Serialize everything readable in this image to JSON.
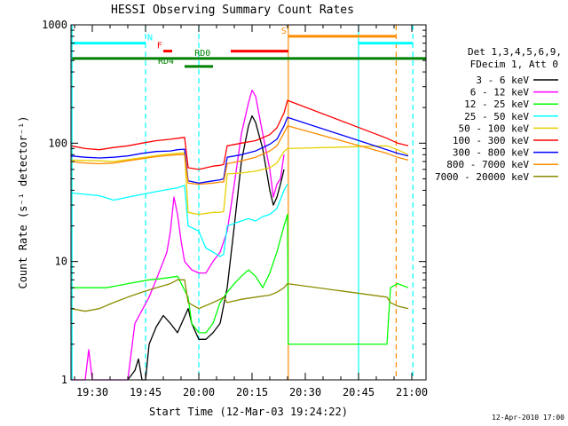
{
  "chart_data": {
    "type": "line",
    "title": "HESSI Observing Summary Count Rates",
    "xlabel": "Start Time (12-Mar-03 19:24:22)",
    "ylabel": "Count Rate (s⁻¹ detector⁻¹)",
    "yscale": "log",
    "ylim": [
      1,
      1000
    ],
    "xlim_min_after_1924": [
      0,
      100
    ],
    "x_ticks": [
      {
        "m": 6,
        "label": "19:30"
      },
      {
        "m": 21,
        "label": "19:45"
      },
      {
        "m": 36,
        "label": "20:00"
      },
      {
        "m": 51,
        "label": "20:15"
      },
      {
        "m": 66,
        "label": "20:30"
      },
      {
        "m": 81,
        "label": "20:45"
      },
      {
        "m": 96,
        "label": "21:00"
      }
    ],
    "y_ticks": [
      {
        "v": 1,
        "label": "1"
      },
      {
        "v": 10,
        "label": "10"
      },
      {
        "v": 100,
        "label": "100"
      },
      {
        "v": 1000,
        "label": "1000"
      }
    ],
    "legend_title": [
      "Det 1,3,4,5,6,9,",
      "FDecim 1, Att 0"
    ],
    "series": [
      {
        "name": "3 - 6 keV",
        "color": "#000000",
        "points": [
          [
            16,
            1
          ],
          [
            18,
            1.2
          ],
          [
            19,
            1.5
          ],
          [
            20,
            1
          ],
          [
            21,
            1
          ],
          [
            22,
            2
          ],
          [
            24,
            2.8
          ],
          [
            26,
            3.5
          ],
          [
            28,
            3
          ],
          [
            30,
            2.5
          ],
          [
            33,
            4
          ],
          [
            34,
            3
          ],
          [
            36,
            2.2
          ],
          [
            38,
            2.2
          ],
          [
            40,
            2.5
          ],
          [
            42,
            3
          ],
          [
            44,
            6
          ],
          [
            46,
            20
          ],
          [
            48,
            70
          ],
          [
            50,
            140
          ],
          [
            51,
            170
          ],
          [
            52,
            150
          ],
          [
            54,
            90
          ],
          [
            56,
            40
          ],
          [
            57,
            30
          ],
          [
            58,
            35
          ],
          [
            59,
            45
          ],
          [
            60,
            60
          ]
        ]
      },
      {
        "name": "6 - 12 keV",
        "color": "#ff00ff",
        "points": [
          [
            0,
            1
          ],
          [
            4,
            1
          ],
          [
            5,
            1.8
          ],
          [
            6,
            1
          ],
          [
            16,
            1
          ],
          [
            18,
            3
          ],
          [
            22,
            5
          ],
          [
            24,
            7
          ],
          [
            26,
            10
          ],
          [
            27,
            12
          ],
          [
            28,
            18
          ],
          [
            29,
            35
          ],
          [
            30,
            25
          ],
          [
            31,
            15
          ],
          [
            32,
            10
          ],
          [
            34,
            8.5
          ],
          [
            36,
            8
          ],
          [
            38,
            8
          ],
          [
            40,
            10
          ],
          [
            42,
            12
          ],
          [
            44,
            18
          ],
          [
            46,
            45
          ],
          [
            48,
            120
          ],
          [
            50,
            220
          ],
          [
            51,
            280
          ],
          [
            52,
            250
          ],
          [
            54,
            120
          ],
          [
            56,
            60
          ],
          [
            57,
            35
          ],
          [
            58,
            45
          ],
          [
            59,
            50
          ],
          [
            60,
            80
          ]
        ]
      },
      {
        "name": "12 - 25 keV",
        "color": "#00ff00",
        "points": [
          [
            0,
            6
          ],
          [
            10,
            6
          ],
          [
            16,
            6.5
          ],
          [
            22,
            7
          ],
          [
            26,
            7.2
          ],
          [
            30,
            7.5
          ],
          [
            33,
            5
          ],
          [
            34,
            3
          ],
          [
            36,
            2.5
          ],
          [
            38,
            2.5
          ],
          [
            40,
            3
          ],
          [
            42,
            4.5
          ],
          [
            44,
            5.5
          ],
          [
            46,
            6.5
          ],
          [
            48,
            7.5
          ],
          [
            50,
            8.5
          ],
          [
            52,
            7.5
          ],
          [
            54,
            6
          ],
          [
            56,
            8
          ],
          [
            58,
            12
          ],
          [
            60,
            20
          ],
          [
            61,
            25
          ],
          [
            61.2,
            2
          ],
          [
            81,
            2
          ],
          [
            89,
            2
          ],
          [
            90,
            6
          ],
          [
            92,
            6.5
          ],
          [
            95,
            6
          ]
        ]
      },
      {
        "name": "25 - 50 keV",
        "color": "#00ffff",
        "points": [
          [
            0,
            38
          ],
          [
            8,
            36
          ],
          [
            12,
            33
          ],
          [
            16,
            35
          ],
          [
            22,
            38
          ],
          [
            26,
            40
          ],
          [
            30,
            42
          ],
          [
            32,
            44
          ],
          [
            33,
            20
          ],
          [
            36,
            18
          ],
          [
            38,
            13
          ],
          [
            40,
            12
          ],
          [
            42,
            11
          ],
          [
            43,
            11.5
          ],
          [
            44,
            20
          ],
          [
            46,
            21
          ],
          [
            48,
            22
          ],
          [
            50,
            23
          ],
          [
            52,
            22
          ],
          [
            54,
            24
          ],
          [
            56,
            25
          ],
          [
            58,
            28
          ],
          [
            60,
            40
          ],
          [
            61,
            45
          ]
        ]
      },
      {
        "name": "50 - 100 keV",
        "color": "#e8d000",
        "points": [
          [
            0,
            72
          ],
          [
            8,
            71
          ],
          [
            12,
            70
          ],
          [
            18,
            74
          ],
          [
            22,
            77
          ],
          [
            26,
            80
          ],
          [
            30,
            82
          ],
          [
            32,
            83
          ],
          [
            33,
            26
          ],
          [
            36,
            25
          ],
          [
            40,
            26
          ],
          [
            42,
            26
          ],
          [
            43,
            26.5
          ],
          [
            44,
            55
          ],
          [
            48,
            56
          ],
          [
            52,
            58
          ],
          [
            56,
            62
          ],
          [
            58,
            68
          ],
          [
            60,
            85
          ],
          [
            61,
            90
          ],
          [
            89,
            95
          ],
          [
            92,
            88
          ],
          [
            95,
            80
          ]
        ]
      },
      {
        "name": "100 - 300 keV",
        "color": "#ff0000",
        "points": [
          [
            0,
            95
          ],
          [
            4,
            90
          ],
          [
            8,
            88
          ],
          [
            12,
            92
          ],
          [
            16,
            95
          ],
          [
            20,
            100
          ],
          [
            24,
            105
          ],
          [
            28,
            108
          ],
          [
            30,
            110
          ],
          [
            32,
            112
          ],
          [
            33,
            62
          ],
          [
            36,
            60
          ],
          [
            40,
            64
          ],
          [
            42,
            65
          ],
          [
            43,
            66
          ],
          [
            44,
            95
          ],
          [
            48,
            100
          ],
          [
            52,
            105
          ],
          [
            56,
            118
          ],
          [
            58,
            135
          ],
          [
            60,
            180
          ],
          [
            61,
            230
          ],
          [
            89,
            110
          ],
          [
            92,
            100
          ],
          [
            95,
            95
          ]
        ]
      },
      {
        "name": "300 - 800 keV",
        "color": "#0000ff",
        "points": [
          [
            0,
            78
          ],
          [
            4,
            76
          ],
          [
            8,
            75
          ],
          [
            12,
            76
          ],
          [
            16,
            78
          ],
          [
            20,
            82
          ],
          [
            24,
            85
          ],
          [
            28,
            86
          ],
          [
            30,
            88
          ],
          [
            32,
            89
          ],
          [
            33,
            48
          ],
          [
            36,
            46
          ],
          [
            40,
            48
          ],
          [
            42,
            49
          ],
          [
            43,
            50
          ],
          [
            44,
            76
          ],
          [
            48,
            80
          ],
          [
            52,
            86
          ],
          [
            56,
            98
          ],
          [
            58,
            108
          ],
          [
            60,
            140
          ],
          [
            61,
            165
          ],
          [
            89,
            88
          ],
          [
            92,
            82
          ],
          [
            95,
            78
          ]
        ]
      },
      {
        "name": "800 - 7000 keV",
        "color": "#ff8c00",
        "points": [
          [
            0,
            70
          ],
          [
            4,
            68
          ],
          [
            8,
            67
          ],
          [
            12,
            68
          ],
          [
            16,
            71
          ],
          [
            20,
            74
          ],
          [
            24,
            77
          ],
          [
            28,
            79
          ],
          [
            30,
            80
          ],
          [
            32,
            80
          ],
          [
            33,
            46
          ],
          [
            36,
            45
          ],
          [
            40,
            46
          ],
          [
            42,
            47
          ],
          [
            43,
            47
          ],
          [
            44,
            67
          ],
          [
            48,
            71
          ],
          [
            52,
            76
          ],
          [
            56,
            86
          ],
          [
            58,
            95
          ],
          [
            60,
            122
          ],
          [
            61,
            140
          ],
          [
            89,
            82
          ],
          [
            92,
            76
          ],
          [
            95,
            72
          ]
        ]
      },
      {
        "name": "7000 - 20000 keV",
        "color": "#8b8b00",
        "points": [
          [
            0,
            4
          ],
          [
            4,
            3.8
          ],
          [
            8,
            4
          ],
          [
            12,
            4.5
          ],
          [
            16,
            5
          ],
          [
            20,
            5.5
          ],
          [
            24,
            6
          ],
          [
            28,
            6.5
          ],
          [
            30,
            7
          ],
          [
            32,
            7
          ],
          [
            33,
            4.5
          ],
          [
            36,
            4
          ],
          [
            40,
            4.5
          ],
          [
            42,
            4.8
          ],
          [
            43,
            5
          ],
          [
            44,
            4.5
          ],
          [
            48,
            4.8
          ],
          [
            52,
            5
          ],
          [
            56,
            5.2
          ],
          [
            58,
            5.5
          ],
          [
            60,
            6
          ],
          [
            61,
            6.5
          ],
          [
            89,
            5
          ],
          [
            90,
            4.5
          ],
          [
            92,
            4.2
          ],
          [
            95,
            4
          ]
        ]
      }
    ],
    "vertical_markers": [
      {
        "m": 0.3,
        "color": "#00ffff",
        "style": "solid"
      },
      {
        "m": 21,
        "color": "#00ffff",
        "style": "dashed"
      },
      {
        "m": 36,
        "color": "#00ffff",
        "style": "dashed"
      },
      {
        "m": 61.2,
        "color": "#ff8c00",
        "style": "solid"
      },
      {
        "m": 81,
        "color": "#00ffff",
        "style": "solid"
      },
      {
        "m": 91.6,
        "color": "#ff8c00",
        "style": "dashed"
      },
      {
        "m": 96.3,
        "color": "#00ffff",
        "style": "dashed"
      }
    ],
    "flag_bars": [
      {
        "label": "N",
        "color": "#00ffff",
        "segments": [
          [
            0.3,
            21
          ],
          [
            81,
            96.3
          ]
        ],
        "level": 700,
        "label_at": 21.5
      },
      {
        "label": "S",
        "color": "#ff8c00",
        "segments": [
          [
            61.2,
            91.6
          ]
        ],
        "level": 800,
        "label_at": 59.2
      },
      {
        "label": "F",
        "color": "#ff0000",
        "segments": [
          [
            26,
            28.5
          ]
        ],
        "level": 600,
        "label_at": 24.2
      },
      {
        "label": "",
        "color": "#ff0000",
        "segments": [
          [
            45,
            61.2
          ]
        ],
        "level": 600,
        "label_at": null
      },
      {
        "label": "RD0",
        "color": "#008000",
        "segments": [
          [
            0.3,
            100
          ]
        ],
        "level": 520,
        "label_at": 34.8
      },
      {
        "label": "RD4",
        "color": "#008000",
        "segments": [
          [
            32,
            40
          ]
        ],
        "level": 445,
        "label_at": 24.5
      }
    ],
    "footer_date": "12-Apr-2010 17:00"
  }
}
